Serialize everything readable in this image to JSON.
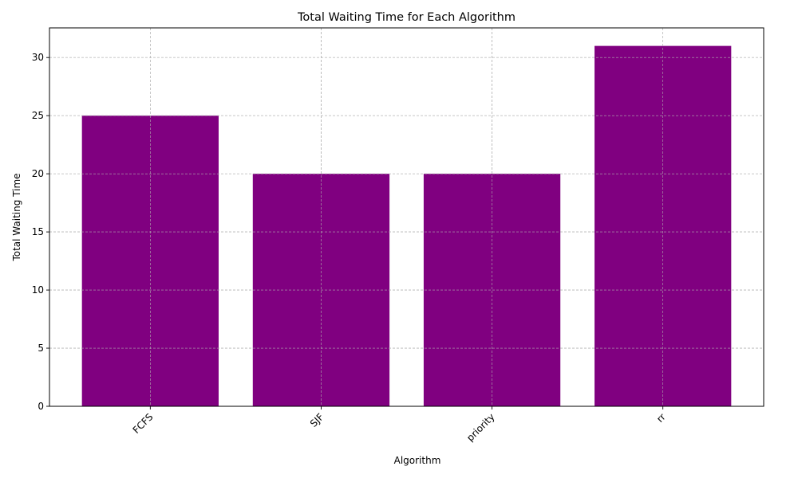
{
  "chart_data": {
    "type": "bar",
    "title": "Total Waiting Time for Each Algorithm",
    "xlabel": "Algorithm",
    "ylabel": "Total Waiting Time",
    "categories": [
      "FCFS",
      "SJF",
      "priority",
      "rr"
    ],
    "values": [
      25,
      20,
      20,
      31
    ],
    "ylim": [
      0,
      32.55
    ],
    "yticks": [
      0,
      5,
      10,
      15,
      20,
      25,
      30
    ],
    "bar_color": "#800080",
    "grid": true,
    "xtick_rotation": 45
  }
}
